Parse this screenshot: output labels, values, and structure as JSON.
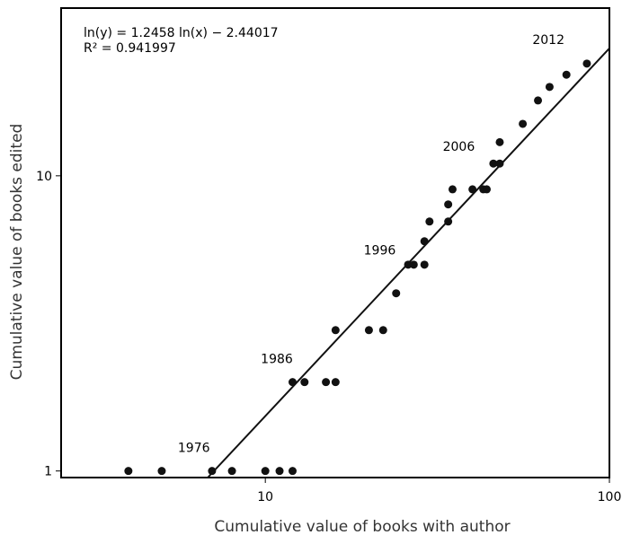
{
  "chart_data": {
    "type": "scatter",
    "xlabel": "Cumulative value of books with author",
    "ylabel": "Cumulative value of books edited",
    "xscale": "log",
    "yscale": "log",
    "xlim": [
      2.55,
      100
    ],
    "ylim": [
      0.95,
      37
    ],
    "x_ticks": [
      {
        "value": 10,
        "label": "10"
      },
      {
        "value": 100,
        "label": "100"
      }
    ],
    "y_ticks": [
      {
        "value": 1,
        "label": "1"
      },
      {
        "value": 10,
        "label": "10"
      }
    ],
    "fit_equation": "ln(y) = 1.2458 ln(x) − 2.44017",
    "r_squared": "R² = 0.941997",
    "fit": {
      "slope": 1.2458,
      "intercept": -2.44017
    },
    "points": [
      {
        "x": 4,
        "y": 1
      },
      {
        "x": 5,
        "y": 1
      },
      {
        "x": 7,
        "y": 1
      },
      {
        "x": 8,
        "y": 1
      },
      {
        "x": 10,
        "y": 1
      },
      {
        "x": 11,
        "y": 1
      },
      {
        "x": 12,
        "y": 1
      },
      {
        "x": 12,
        "y": 2
      },
      {
        "x": 13,
        "y": 2
      },
      {
        "x": 15,
        "y": 2
      },
      {
        "x": 16,
        "y": 2
      },
      {
        "x": 16,
        "y": 3
      },
      {
        "x": 20,
        "y": 3
      },
      {
        "x": 22,
        "y": 3
      },
      {
        "x": 24,
        "y": 4
      },
      {
        "x": 26,
        "y": 5
      },
      {
        "x": 27,
        "y": 5
      },
      {
        "x": 29,
        "y": 5
      },
      {
        "x": 29,
        "y": 6
      },
      {
        "x": 30,
        "y": 7
      },
      {
        "x": 34,
        "y": 7
      },
      {
        "x": 34,
        "y": 8
      },
      {
        "x": 35,
        "y": 9
      },
      {
        "x": 40,
        "y": 9
      },
      {
        "x": 43,
        "y": 9
      },
      {
        "x": 44,
        "y": 9
      },
      {
        "x": 46,
        "y": 11
      },
      {
        "x": 48,
        "y": 11
      },
      {
        "x": 48,
        "y": 13
      },
      {
        "x": 56,
        "y": 15
      },
      {
        "x": 62,
        "y": 18
      },
      {
        "x": 67,
        "y": 20
      },
      {
        "x": 75,
        "y": 22
      },
      {
        "x": 86,
        "y": 24
      }
    ],
    "annotations": [
      {
        "text": "1976",
        "x": 6.2,
        "y": 1.2
      },
      {
        "text": "1986",
        "x": 10.8,
        "y": 2.4
      },
      {
        "text": "1996",
        "x": 21.5,
        "y": 5.6
      },
      {
        "text": "2006",
        "x": 36.5,
        "y": 12.6
      },
      {
        "text": "2012",
        "x": 66.5,
        "y": 29
      }
    ],
    "grid": false,
    "legend": "none"
  }
}
